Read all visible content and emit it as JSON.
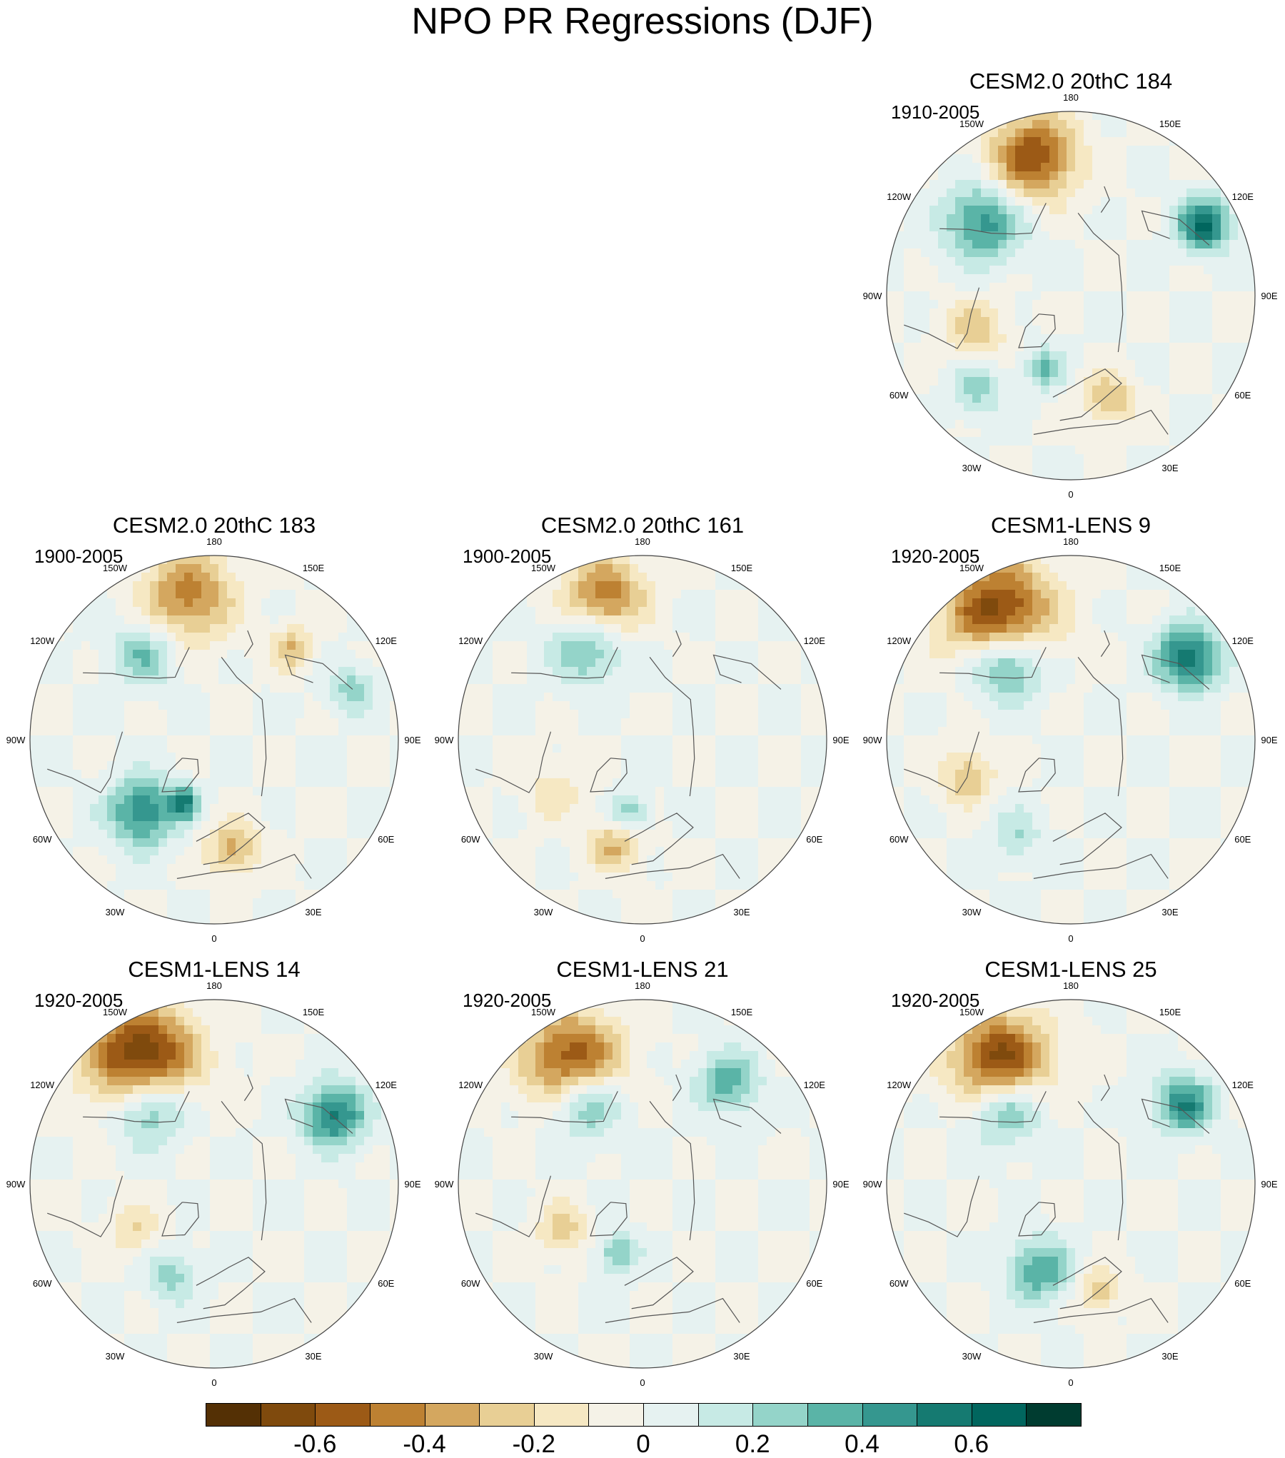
{
  "chart_data": {
    "type": "contour-map",
    "title": "NPO PR Regressions (DJF)",
    "projection": "polar stereographic, Northern Hemisphere",
    "longitude_labels": [
      "180",
      "150E",
      "120E",
      "90E",
      "60E",
      "30E",
      "0",
      "30W",
      "60W",
      "90W",
      "120W",
      "150W"
    ],
    "panels": [
      {
        "id": "p184",
        "title": "CESM2.0 20thC 184",
        "period": "1910-2005",
        "features": [
          {
            "lon": -165,
            "r": 0.78,
            "v": -0.6,
            "s": 0.16
          },
          {
            "lon": -130,
            "r": 0.62,
            "v": 0.45,
            "s": 0.15
          },
          {
            "lon": 118,
            "r": 0.82,
            "v": 0.6,
            "s": 0.1
          },
          {
            "lon": -70,
            "r": 0.55,
            "v": -0.25,
            "s": 0.12
          },
          {
            "lon": -20,
            "r": 0.42,
            "v": 0.3,
            "s": 0.08
          },
          {
            "lon": 20,
            "r": 0.6,
            "v": -0.3,
            "s": 0.1
          },
          {
            "lon": -45,
            "r": 0.72,
            "v": 0.25,
            "s": 0.1
          }
        ]
      },
      {
        "id": "p183",
        "title": "CESM2.0 20thC 183",
        "period": "1900-2005",
        "features": [
          {
            "lon": -170,
            "r": 0.8,
            "v": -0.45,
            "s": 0.17
          },
          {
            "lon": -140,
            "r": 0.6,
            "v": 0.3,
            "s": 0.12
          },
          {
            "lon": -45,
            "r": 0.55,
            "v": 0.5,
            "s": 0.13
          },
          {
            "lon": -25,
            "r": 0.38,
            "v": 0.45,
            "s": 0.06
          },
          {
            "lon": 10,
            "r": 0.6,
            "v": -0.35,
            "s": 0.1
          },
          {
            "lon": 140,
            "r": 0.65,
            "v": -0.3,
            "s": 0.08
          },
          {
            "lon": 110,
            "r": 0.8,
            "v": 0.25,
            "s": 0.09
          }
        ]
      },
      {
        "id": "p161",
        "title": "CESM2.0 20thC 161",
        "period": "1900-2005",
        "features": [
          {
            "lon": -165,
            "r": 0.8,
            "v": -0.5,
            "s": 0.15
          },
          {
            "lon": -150,
            "r": 0.58,
            "v": 0.35,
            "s": 0.14
          },
          {
            "lon": -15,
            "r": 0.6,
            "v": -0.3,
            "s": 0.1
          },
          {
            "lon": -60,
            "r": 0.55,
            "v": -0.15,
            "s": 0.12
          },
          {
            "lon": -10,
            "r": 0.4,
            "v": 0.3,
            "s": 0.07
          }
        ]
      },
      {
        "id": "p9",
        "title": "CESM1-LENS 9",
        "period": "1920-2005",
        "features": [
          {
            "lon": -150,
            "r": 0.78,
            "v": -0.7,
            "s": 0.2
          },
          {
            "lon": -140,
            "r": 0.55,
            "v": 0.55,
            "s": 0.14
          },
          {
            "lon": 125,
            "r": 0.78,
            "v": 0.6,
            "s": 0.12
          },
          {
            "lon": -70,
            "r": 0.6,
            "v": -0.3,
            "s": 0.1
          },
          {
            "lon": -30,
            "r": 0.6,
            "v": 0.2,
            "s": 0.1
          }
        ]
      },
      {
        "id": "p14",
        "title": "CESM1-LENS 14",
        "period": "1920-2005",
        "features": [
          {
            "lon": -150,
            "r": 0.78,
            "v": -0.75,
            "s": 0.2
          },
          {
            "lon": -140,
            "r": 0.55,
            "v": 0.5,
            "s": 0.14
          },
          {
            "lon": 120,
            "r": 0.75,
            "v": 0.55,
            "s": 0.12
          },
          {
            "lon": -60,
            "r": 0.5,
            "v": -0.2,
            "s": 0.1
          },
          {
            "lon": -25,
            "r": 0.55,
            "v": 0.25,
            "s": 0.1
          }
        ]
      },
      {
        "id": "p21",
        "title": "CESM1-LENS 21",
        "period": "1920-2005",
        "features": [
          {
            "lon": -150,
            "r": 0.76,
            "v": -0.65,
            "s": 0.18
          },
          {
            "lon": -145,
            "r": 0.55,
            "v": 0.45,
            "s": 0.14
          },
          {
            "lon": 140,
            "r": 0.72,
            "v": 0.35,
            "s": 0.12
          },
          {
            "lon": -60,
            "r": 0.5,
            "v": -0.25,
            "s": 0.1
          },
          {
            "lon": -20,
            "r": 0.4,
            "v": 0.3,
            "s": 0.08
          }
        ]
      },
      {
        "id": "p25",
        "title": "CESM1-LENS 25",
        "period": "1920-2005",
        "features": [
          {
            "lon": -150,
            "r": 0.76,
            "v": -0.7,
            "s": 0.18
          },
          {
            "lon": -140,
            "r": 0.55,
            "v": 0.45,
            "s": 0.14
          },
          {
            "lon": 125,
            "r": 0.75,
            "v": 0.5,
            "s": 0.11
          },
          {
            "lon": -20,
            "r": 0.5,
            "v": 0.4,
            "s": 0.12
          },
          {
            "lon": 15,
            "r": 0.6,
            "v": -0.3,
            "s": 0.08
          }
        ]
      }
    ],
    "colorbar": {
      "levels": [
        -0.7,
        -0.6,
        -0.5,
        -0.4,
        -0.3,
        -0.2,
        -0.1,
        0,
        0.1,
        0.2,
        0.3,
        0.4,
        0.5,
        0.6,
        0.7
      ],
      "colors": [
        "#543005",
        "#7f4a0d",
        "#9c5a16",
        "#bd8132",
        "#d4a75f",
        "#e8cf95",
        "#f6e8c3",
        "#f5f2e7",
        "#e6f2f1",
        "#c7eae5",
        "#94d4c9",
        "#5ab4a7",
        "#35978f",
        "#157a71",
        "#01665e",
        "#003c30"
      ],
      "tick_labels": [
        {
          "value": -0.6,
          "label": "-0.6"
        },
        {
          "value": -0.4,
          "label": "-0.4"
        },
        {
          "value": -0.2,
          "label": "-0.2"
        },
        {
          "value": 0,
          "label": "0"
        },
        {
          "value": 0.2,
          "label": "0.2"
        },
        {
          "value": 0.4,
          "label": "0.4"
        },
        {
          "value": 0.6,
          "label": "0.6"
        }
      ]
    }
  }
}
